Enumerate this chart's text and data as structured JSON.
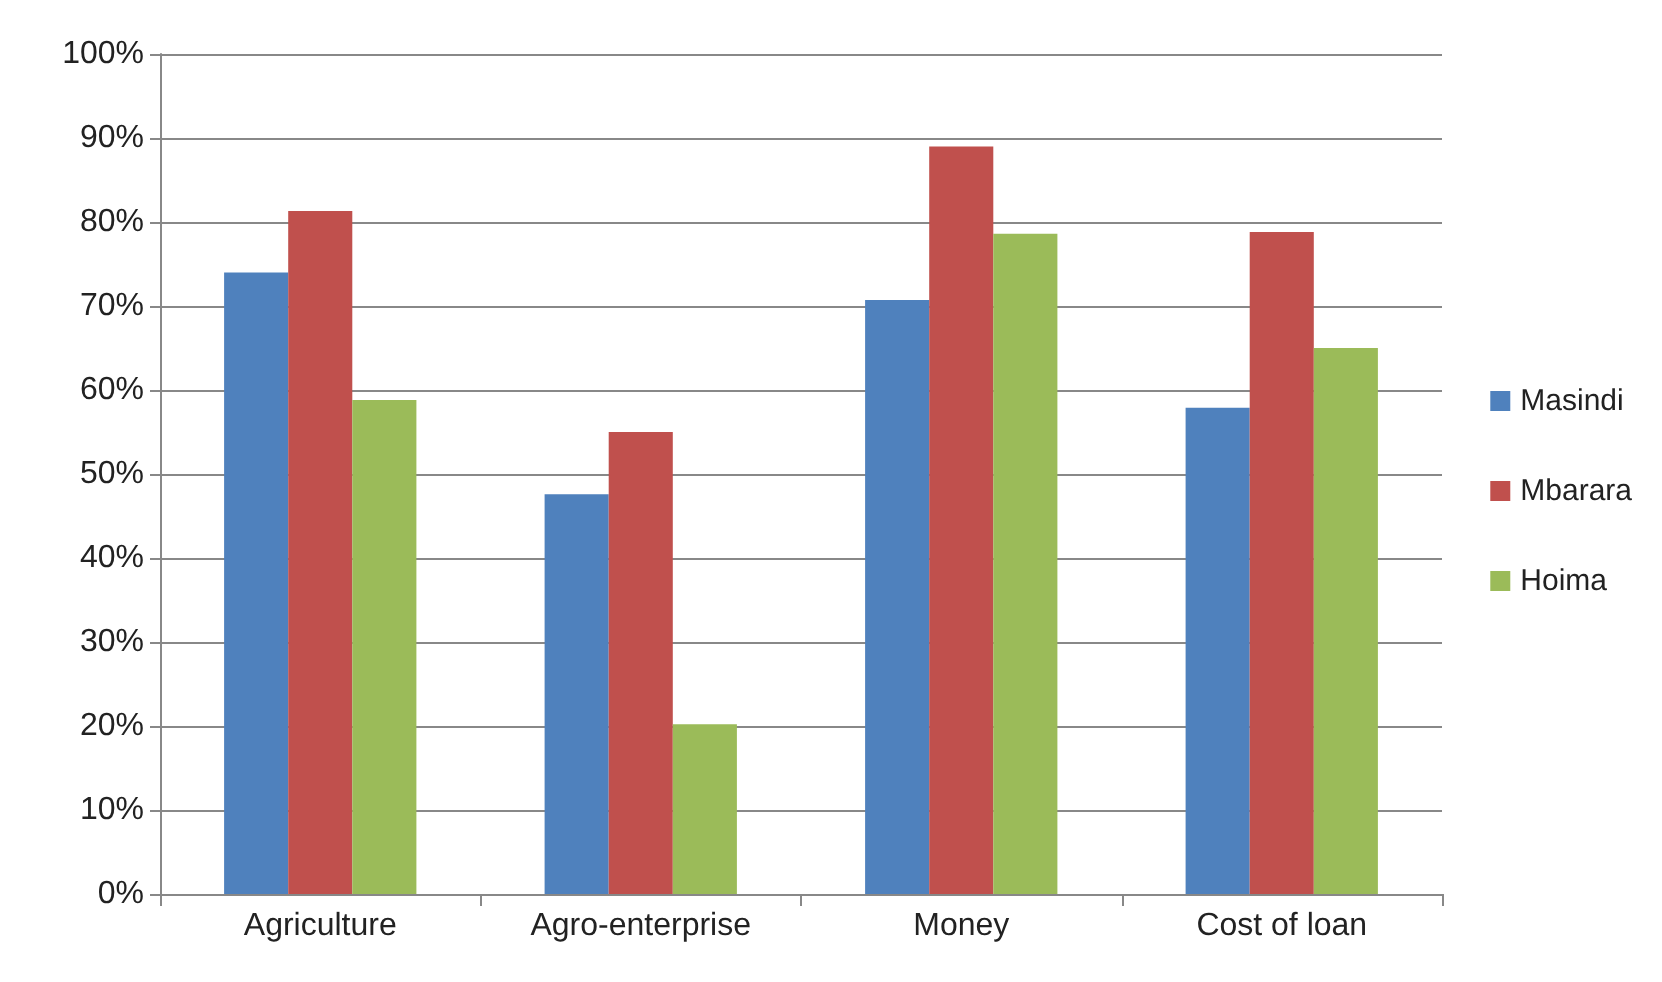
{
  "chart_data": {
    "type": "bar",
    "categories": [
      "Agriculture",
      "Agro-enterprise",
      "Money",
      "Cost of loan"
    ],
    "series": [
      {
        "name": "Masindi",
        "color": "#4f81bd",
        "values": [
          74,
          47.6,
          70.7,
          57.9
        ]
      },
      {
        "name": "Mbarara",
        "color": "#c0504d",
        "values": [
          81.3,
          55,
          89,
          78.8
        ]
      },
      {
        "name": "Hoima",
        "color": "#9bbb59",
        "values": [
          58.8,
          20.2,
          78.6,
          65
        ]
      }
    ],
    "ylim": [
      0,
      100
    ],
    "yticks": [
      {
        "value": 0,
        "label": "0%"
      },
      {
        "value": 10,
        "label": "10%"
      },
      {
        "value": 20,
        "label": "20%"
      },
      {
        "value": 30,
        "label": "30%"
      },
      {
        "value": 40,
        "label": "40%"
      },
      {
        "value": 50,
        "label": "50%"
      },
      {
        "value": 60,
        "label": "60%"
      },
      {
        "value": 70,
        "label": "70%"
      },
      {
        "value": 80,
        "label": "80%"
      },
      {
        "value": 90,
        "label": "90%"
      },
      {
        "value": 100,
        "label": "100%"
      }
    ],
    "grid": "y",
    "legend": "right"
  }
}
